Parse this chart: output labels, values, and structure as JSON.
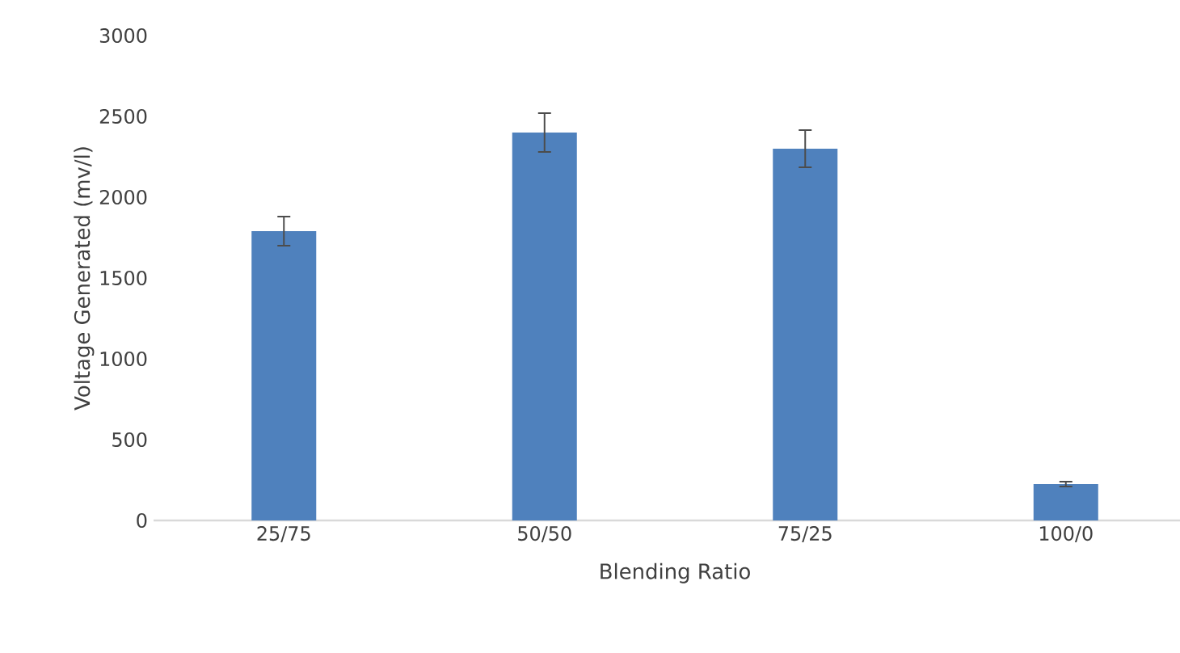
{
  "chart_data": {
    "type": "bar",
    "xlabel": "Blending Ratio",
    "ylabel": "Voltage Generated (mv/l)",
    "categories": [
      "25/75",
      "50/50",
      "75/25",
      "100/0"
    ],
    "values": [
      1790,
      2400,
      2300,
      225
    ],
    "errors": [
      90,
      120,
      115,
      15
    ],
    "color": "#4f81bd",
    "ylim": [
      0,
      3000
    ],
    "yticks": [
      0,
      500,
      1000,
      1500,
      2000,
      2500,
      3000
    ]
  }
}
